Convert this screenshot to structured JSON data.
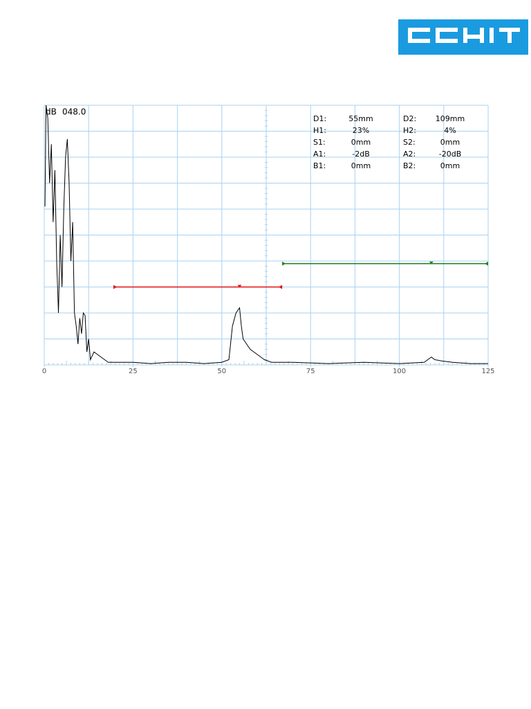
{
  "chart_data": {
    "type": "line",
    "gain_unit": "dB",
    "gain": "048.0",
    "xlim": [
      0,
      125
    ],
    "ylim": [
      0,
      100
    ],
    "xticks": [
      0,
      25,
      50,
      75,
      100,
      125
    ],
    "grid": true,
    "color": "#000000",
    "x": [
      0.2,
      0.5,
      1,
      1.5,
      2,
      2.5,
      3,
      3.5,
      4,
      4.5,
      5,
      5.5,
      6,
      6.5,
      7,
      7.5,
      8,
      8.5,
      9,
      9.5,
      10,
      10.5,
      11,
      11.5,
      12,
      12.5,
      13,
      14,
      15,
      16,
      17,
      18,
      20,
      25,
      30,
      35,
      40,
      45,
      50,
      52,
      53,
      54,
      55,
      55.5,
      56,
      57,
      58,
      59,
      60,
      61,
      62,
      64,
      70,
      80,
      90,
      100,
      107,
      108,
      109,
      110,
      112,
      115,
      120,
      125
    ],
    "values": [
      61,
      100,
      95,
      70,
      85,
      55,
      75,
      40,
      20,
      50,
      30,
      60,
      80,
      87,
      70,
      40,
      55,
      20,
      15,
      8,
      18,
      12,
      20,
      19,
      5,
      10,
      2,
      5,
      4,
      3,
      2,
      1,
      1,
      1,
      0.5,
      1,
      1,
      0.5,
      1,
      2,
      15,
      20,
      22,
      15,
      10,
      8,
      6,
      5,
      4,
      3,
      2,
      1,
      1,
      0.5,
      1,
      0.5,
      1,
      2,
      3,
      2,
      1.5,
      1,
      0.5,
      0.5
    ],
    "gates": [
      {
        "color": "#e01010",
        "start": 19.5,
        "end": 67,
        "level": 30,
        "marker": 55
      },
      {
        "color": "#208020",
        "start": 67,
        "end": 125,
        "level": 39,
        "marker": 109
      }
    ],
    "readings": [
      [
        "D1:",
        "55mm",
        "D2:",
        "109mm"
      ],
      [
        "H1:",
        "23%",
        "H2:",
        "4%"
      ],
      [
        "S1:",
        "0mm",
        "S2:",
        "0mm"
      ],
      [
        "A1:",
        "-2dB",
        "A2:",
        "-20dB"
      ],
      [
        "B1:",
        "0mm",
        "B2:",
        "0mm"
      ]
    ]
  }
}
